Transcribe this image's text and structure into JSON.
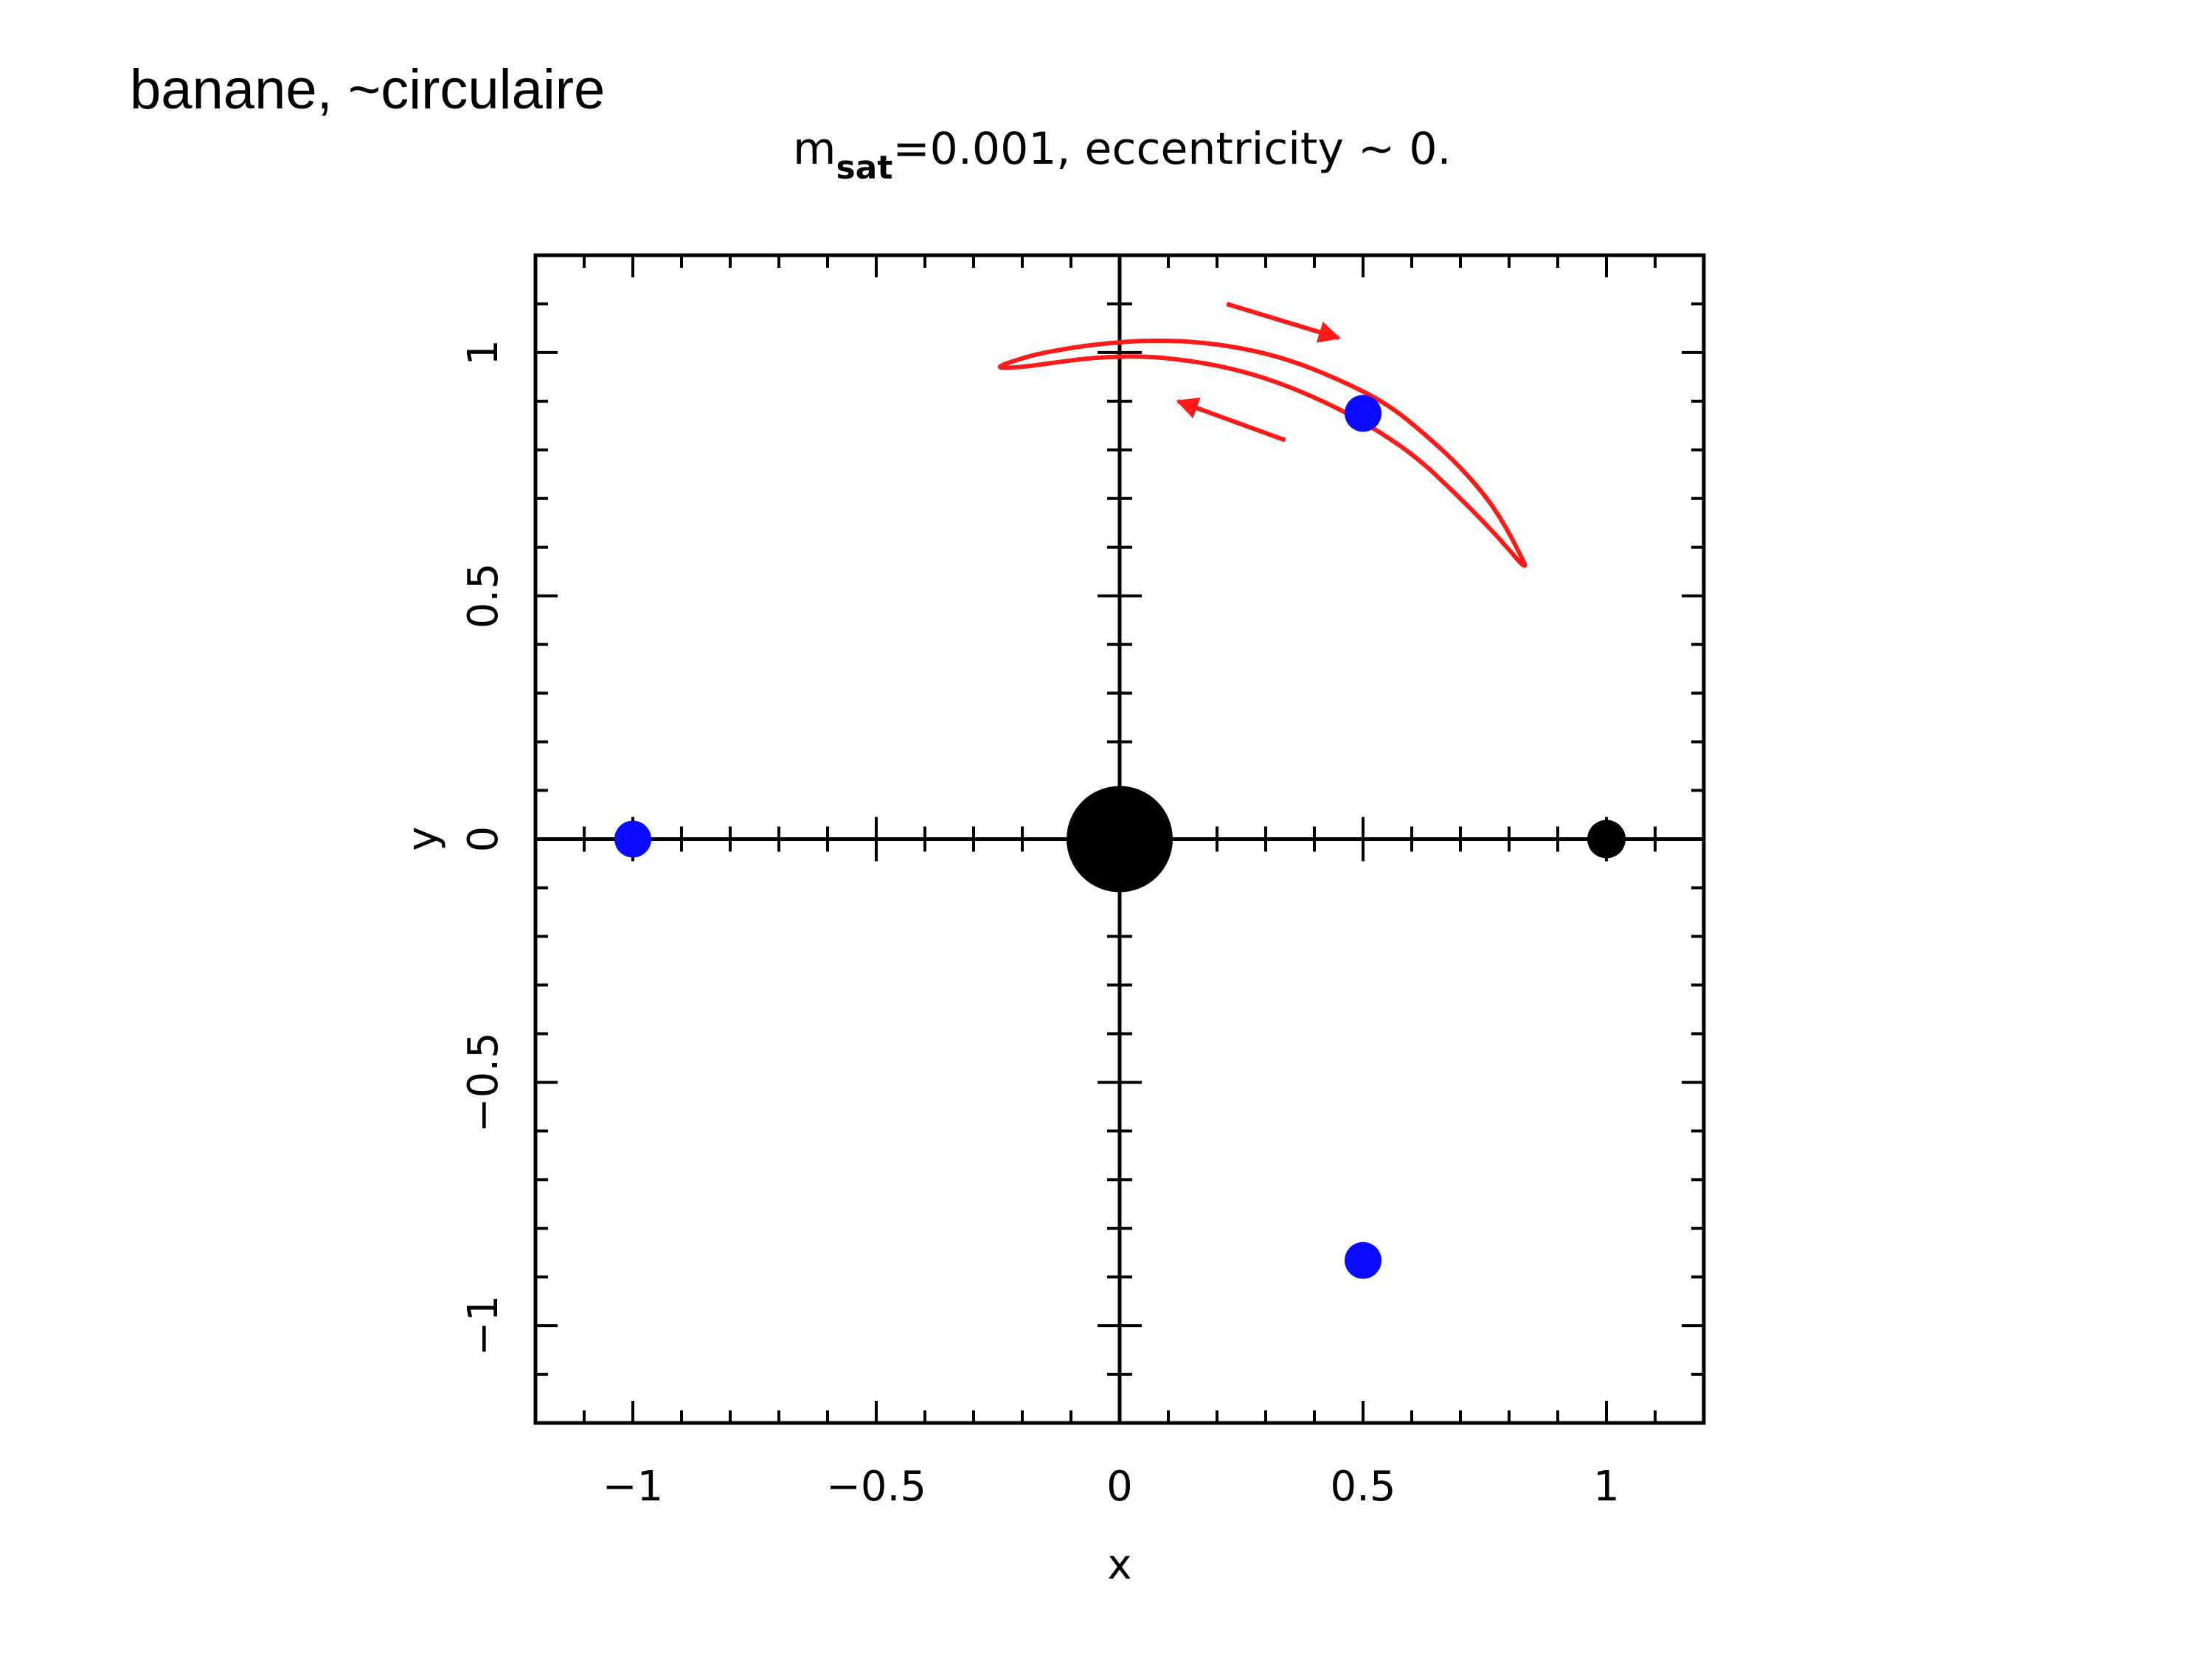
{
  "slide": {
    "title": "banane, ~circulaire"
  },
  "chart_data": {
    "type": "scatter",
    "title": {
      "prefix": "m",
      "subscript": "sat",
      "rest": "=0.001,  eccentricity  ~  0."
    },
    "xlabel": "x",
    "ylabel": "y",
    "xlim": [
      -1.2,
      1.2
    ],
    "ylim": [
      -1.2,
      1.2
    ],
    "xticks": [
      {
        "value": -1,
        "label": "−1"
      },
      {
        "value": -0.5,
        "label": "−0.5"
      },
      {
        "value": 0,
        "label": "0"
      },
      {
        "value": 0.5,
        "label": "0.5"
      },
      {
        "value": 1,
        "label": "1"
      }
    ],
    "yticks": [
      {
        "value": -1,
        "label": "−1"
      },
      {
        "value": -0.5,
        "label": "−0.5"
      },
      {
        "value": 0,
        "label": "0"
      },
      {
        "value": 0.5,
        "label": "0.5"
      },
      {
        "value": 1,
        "label": "1"
      }
    ],
    "minor_tick_step": 0.1,
    "axes_lines_through_origin": true,
    "grid": false,
    "points": [
      {
        "name": "central-body",
        "x": 0,
        "y": 0,
        "color": "#000000",
        "size": "large"
      },
      {
        "name": "satellite",
        "x": 1,
        "y": 0,
        "color": "#000000",
        "size": "small"
      },
      {
        "name": "lagrange-l4",
        "x": 0.5,
        "y": 0.875,
        "color": "#0a0aff",
        "size": "medium"
      },
      {
        "name": "lagrange-l5",
        "x": 0.5,
        "y": -0.866,
        "color": "#0a0aff",
        "size": "medium"
      },
      {
        "name": "lagrange-l3",
        "x": -1,
        "y": 0,
        "color": "#0a0aff",
        "size": "medium"
      }
    ],
    "orbit": {
      "color": "#ff1a1a",
      "xy": [
        [
          -0.24,
          0.975
        ],
        [
          -0.18,
          0.995
        ],
        [
          -0.1,
          1.01
        ],
        [
          -0.02,
          1.02
        ],
        [
          0.06,
          1.025
        ],
        [
          0.15,
          1.023
        ],
        [
          0.25,
          1.01
        ],
        [
          0.35,
          0.985
        ],
        [
          0.45,
          0.945
        ],
        [
          0.55,
          0.895
        ],
        [
          0.63,
          0.83
        ],
        [
          0.7,
          0.765
        ],
        [
          0.76,
          0.695
        ],
        [
          0.8,
          0.63
        ],
        [
          0.825,
          0.58
        ],
        [
          0.835,
          0.56
        ],
        [
          0.825,
          0.565
        ],
        [
          0.8,
          0.595
        ],
        [
          0.75,
          0.65
        ],
        [
          0.68,
          0.72
        ],
        [
          0.61,
          0.785
        ],
        [
          0.53,
          0.84
        ],
        [
          0.45,
          0.885
        ],
        [
          0.35,
          0.93
        ],
        [
          0.25,
          0.963
        ],
        [
          0.15,
          0.983
        ],
        [
          0.05,
          0.993
        ],
        [
          -0.05,
          0.99
        ],
        [
          -0.13,
          0.98
        ],
        [
          -0.2,
          0.97
        ],
        [
          -0.25,
          0.968
        ],
        [
          -0.24,
          0.975
        ]
      ],
      "arrows": [
        {
          "from": [
            0.22,
            1.1
          ],
          "to": [
            0.45,
            1.03
          ]
        },
        {
          "from": [
            0.34,
            0.82
          ],
          "to": [
            0.12,
            0.9
          ]
        }
      ]
    }
  }
}
